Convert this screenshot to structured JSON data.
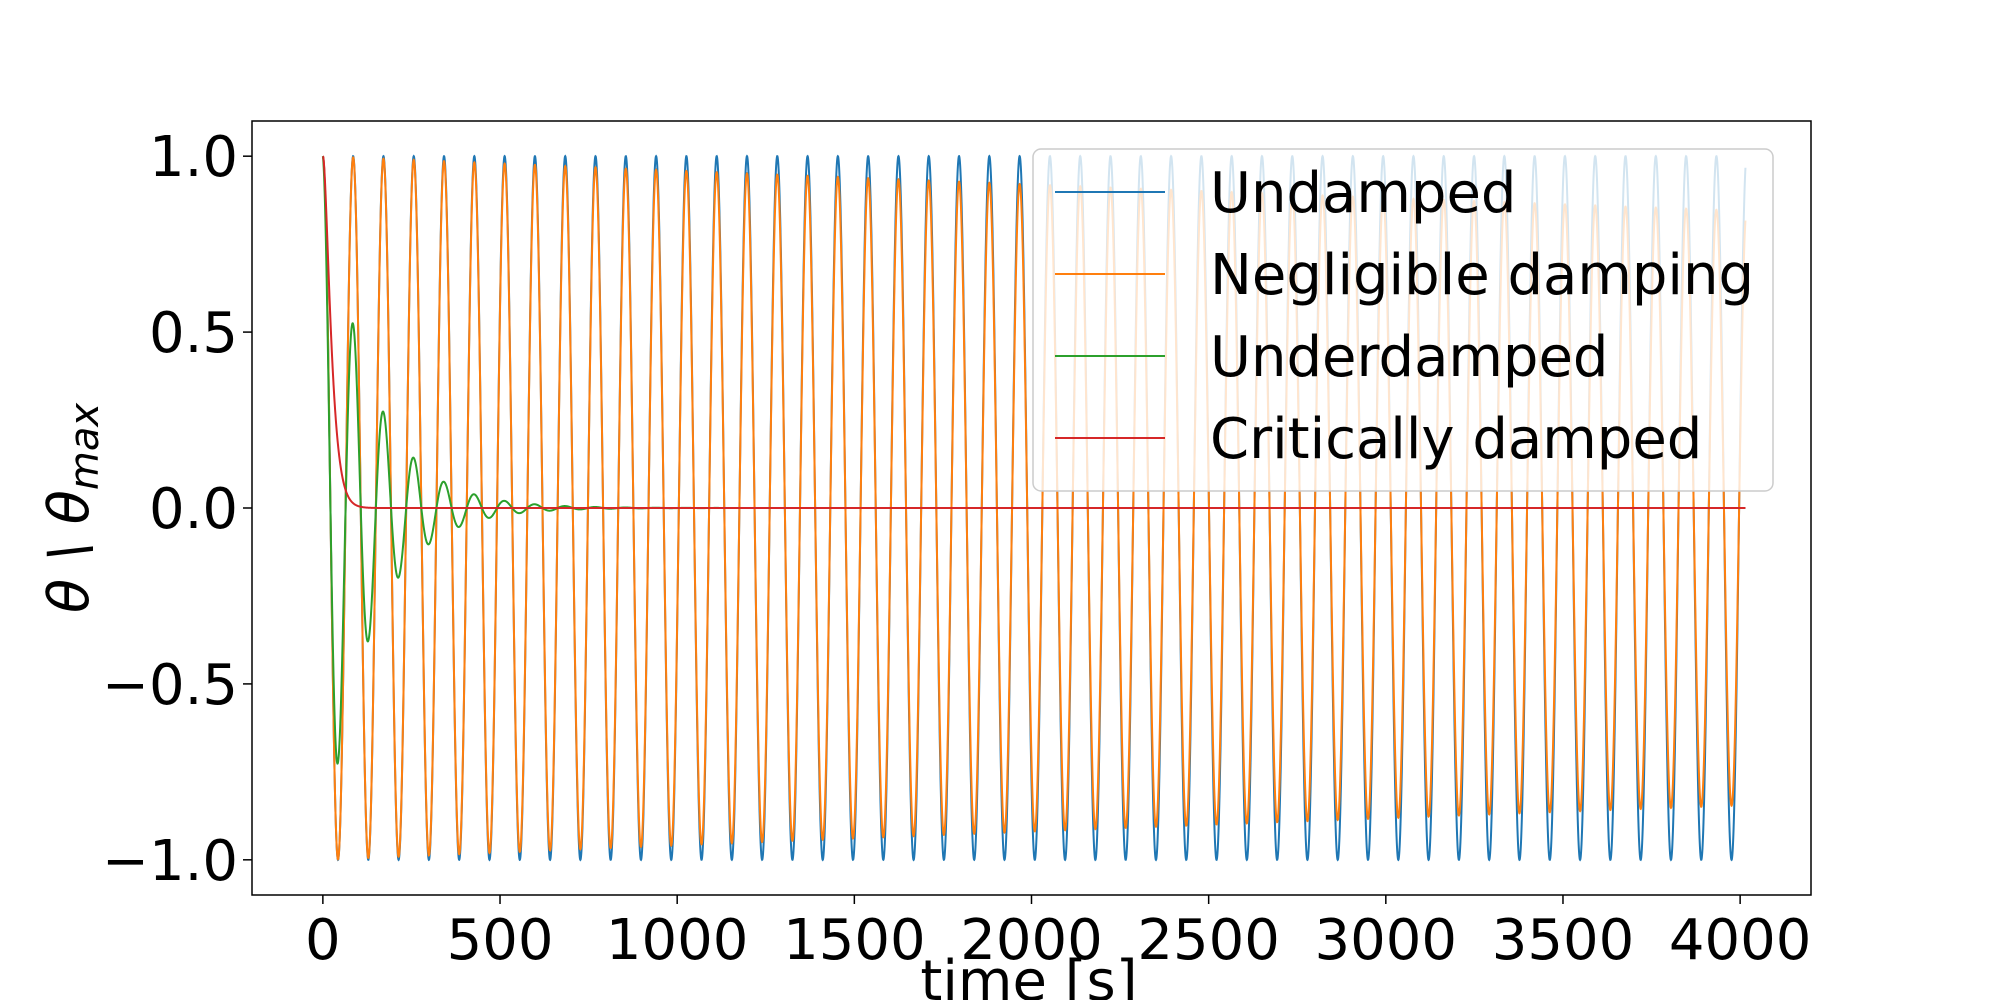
{
  "chart_data": {
    "type": "line",
    "xlabel": "time [s]",
    "ylabel_base": "θ \\ θ",
    "ylabel_sub": "max",
    "xlim": [
      -200,
      4200
    ],
    "ylim": [
      -1.1,
      1.1
    ],
    "xticks": [
      0,
      500,
      1000,
      1500,
      2000,
      2500,
      3000,
      3500,
      4000
    ],
    "xtick_labels": [
      "0",
      "500",
      "1000",
      "1500",
      "2000",
      "2500",
      "3000",
      "3500",
      "4000"
    ],
    "yticks": [
      1.0,
      0.5,
      0.0,
      -0.5,
      -1.0
    ],
    "ytick_labels": [
      "1.0",
      "0.5",
      "0.0",
      "−0.5",
      "−1.0"
    ],
    "grid": false,
    "legend_position": "upper-right",
    "x_range": [
      0,
      4015
    ],
    "series": [
      {
        "name": "Undamped",
        "color": "#1f77b4",
        "model": "cos",
        "period_s": 85.5,
        "decay_per_s": 0.0,
        "amplitude": 1.0
      },
      {
        "name": "Negligible damping",
        "color": "#ff7f0e",
        "model": "cos",
        "period_s": 85.5,
        "decay_per_s": 4.2e-05,
        "amplitude": 1.0
      },
      {
        "name": "Underdamped",
        "color": "#2ca02c",
        "model": "cos",
        "period_s": 85.5,
        "decay_per_s": 0.0076,
        "amplitude": 1.0
      },
      {
        "name": "Critically damped",
        "color": "#d62728",
        "model": "critical",
        "decay_per_s": 0.0735,
        "amplitude": 1.0
      }
    ]
  }
}
